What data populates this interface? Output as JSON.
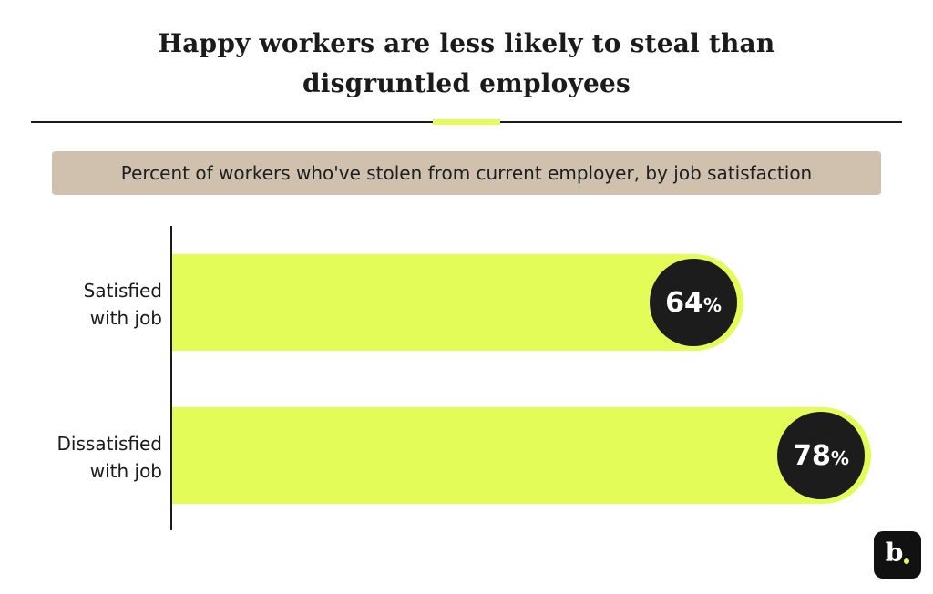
{
  "title_lines": [
    "Happy workers are less likely to steal than",
    "disgruntled employees"
  ],
  "subtitle": "Percent of workers who've stolen from current employer, by job satisfaction",
  "logo_letter": "b",
  "colors": {
    "bar": "#e4fc58",
    "bubble": "#1c1c1c",
    "subtitle_bg": "#cfc1ae",
    "text": "#1a1a1a"
  },
  "chart_data": {
    "type": "bar",
    "orientation": "horizontal",
    "categories": [
      [
        "Satisfied",
        "with job"
      ],
      [
        "Dissatisfied",
        "with job"
      ]
    ],
    "values": [
      64,
      78
    ],
    "value_labels": [
      "64",
      "78"
    ],
    "unit": "%",
    "title": "Happy workers are less likely to steal than disgruntled employees",
    "subtitle": "Percent of workers who've stolen from current employer, by job satisfaction",
    "xlim": [
      0,
      100
    ]
  }
}
